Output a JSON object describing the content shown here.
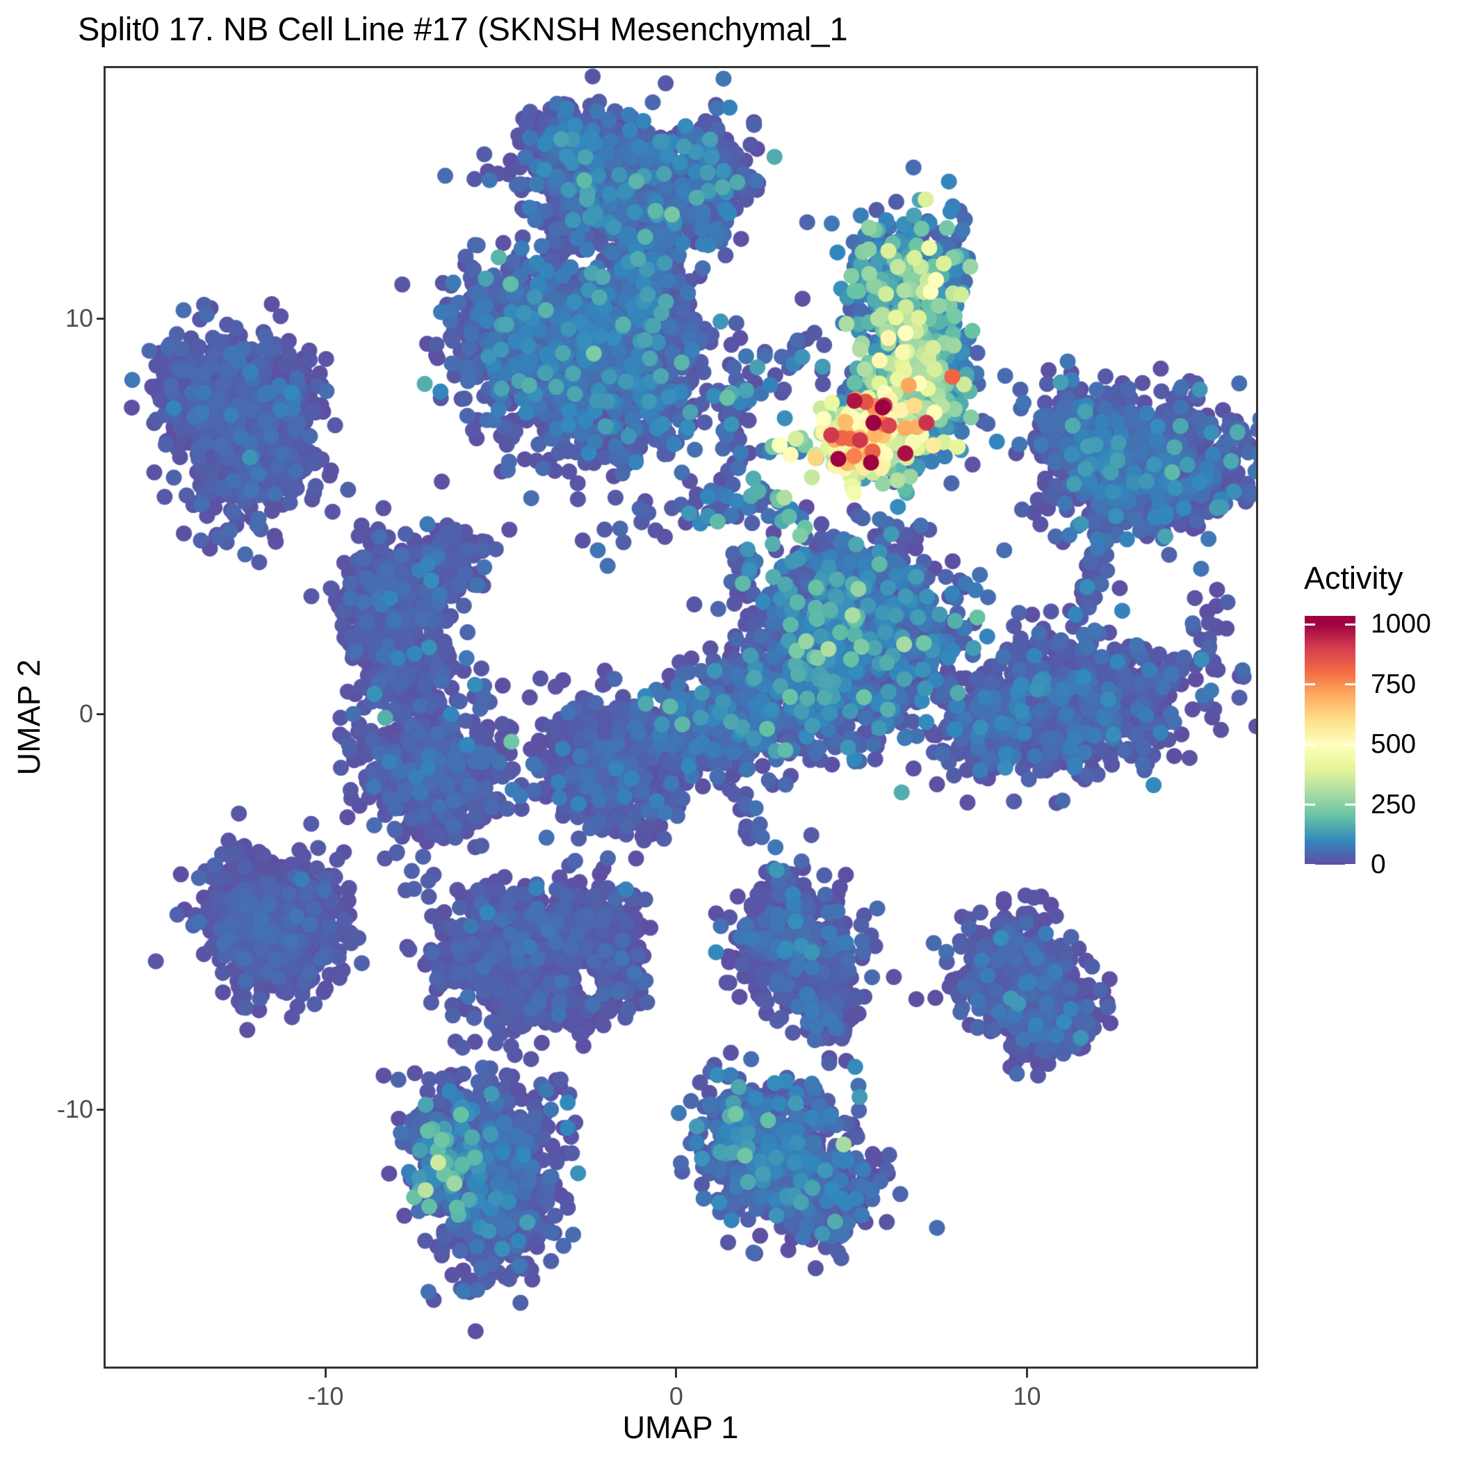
{
  "title": "Split0 17. NB Cell Line #17 (SKNSH Mesenchymal_1",
  "axes": {
    "x_label": "UMAP 1",
    "y_label": "UMAP 2",
    "x_ticks": [
      {
        "value": -10,
        "label": "-10"
      },
      {
        "value": 0,
        "label": "0"
      },
      {
        "value": 10,
        "label": "10"
      }
    ],
    "y_ticks": [
      {
        "value": 10,
        "label": "10"
      },
      {
        "value": 0,
        "label": "0"
      },
      {
        "value": -10,
        "label": "-10"
      }
    ]
  },
  "legend": {
    "title": "Activity",
    "ticks": [
      {
        "value": 1000,
        "label": "1000"
      },
      {
        "value": 750,
        "label": "750"
      },
      {
        "value": 500,
        "label": "500"
      },
      {
        "value": 250,
        "label": "250"
      },
      {
        "value": 0,
        "label": "0"
      }
    ],
    "bar_value_max": 1035
  },
  "chart_data": {
    "type": "scatter",
    "title": "Split0 17. NB Cell Line #17 (SKNSH Mesenchymal_1",
    "xlabel": "UMAP 1",
    "ylabel": "UMAP 2",
    "xlim": [
      -16.27,
      16.53
    ],
    "ylim": [
      -16.5,
      16.33
    ],
    "x_tick_values": [
      -10,
      0,
      10
    ],
    "y_tick_values": [
      -10,
      0,
      10
    ],
    "grid": false,
    "legend_position": "right",
    "value_label": "Activity",
    "value_domain": [
      0,
      1000
    ],
    "point_radius_px": 11.5,
    "seed": 1337,
    "colormap_stops": [
      [
        0.0,
        "#5e4fa2"
      ],
      [
        0.1,
        "#3288bd"
      ],
      [
        0.2,
        "#66c2a5"
      ],
      [
        0.3,
        "#abdda4"
      ],
      [
        0.4,
        "#e6f598"
      ],
      [
        0.5,
        "#ffffbf"
      ],
      [
        0.6,
        "#fee08b"
      ],
      [
        0.7,
        "#fdae61"
      ],
      [
        0.8,
        "#f46d43"
      ],
      [
        0.9,
        "#d53e4f"
      ],
      [
        1.0,
        "#9e0142"
      ]
    ],
    "cluster_fields": [
      "cx",
      "cy",
      "sx",
      "sy",
      "n",
      "v0",
      "v_spread"
    ],
    "clusters": [
      [
        -2.6,
        14.2,
        0.95,
        0.6,
        380,
        0,
        30
      ],
      [
        -1.5,
        13.2,
        1.2,
        0.75,
        600,
        0,
        35
      ],
      [
        0.9,
        13.5,
        0.55,
        0.75,
        240,
        0,
        35
      ],
      [
        -0.7,
        11.7,
        0.45,
        0.65,
        120,
        0,
        30
      ],
      [
        -4.0,
        9.9,
        1.2,
        0.85,
        650,
        0,
        30
      ],
      [
        -2.4,
        8.5,
        1.5,
        1.05,
        900,
        0,
        35
      ],
      [
        -0.9,
        10.1,
        0.7,
        0.8,
        250,
        0,
        30
      ],
      [
        -13.3,
        8.2,
        0.8,
        0.75,
        320,
        0,
        18
      ],
      [
        -12.1,
        6.7,
        0.95,
        0.95,
        480,
        0,
        18
      ],
      [
        -11.3,
        8.1,
        0.6,
        0.55,
        160,
        0,
        18
      ],
      [
        -8.0,
        3.0,
        0.8,
        0.75,
        320,
        0,
        18
      ],
      [
        -6.6,
        4.0,
        0.55,
        0.4,
        100,
        0,
        18
      ],
      [
        -7.9,
        1.4,
        0.65,
        0.75,
        230,
        0,
        18
      ],
      [
        -6.9,
        -1.5,
        1.05,
        0.85,
        560,
        0,
        18
      ],
      [
        -1.9,
        -1.3,
        0.95,
        0.8,
        520,
        0,
        18
      ],
      [
        5.0,
        2.3,
        1.35,
        1.1,
        950,
        0,
        45
      ],
      [
        3.0,
        0.3,
        1.8,
        0.75,
        550,
        0,
        40
      ],
      [
        0.9,
        -0.7,
        0.95,
        0.5,
        170,
        0,
        30
      ],
      [
        6.6,
        11.0,
        0.85,
        0.8,
        380,
        10,
        90
      ],
      [
        6.9,
        8.6,
        0.8,
        0.95,
        480,
        20,
        130
      ],
      [
        5.9,
        7.3,
        0.6,
        0.6,
        200,
        80,
        180
      ],
      [
        5.1,
        6.7,
        0.5,
        0.42,
        170,
        260,
        160
      ],
      [
        13.4,
        6.2,
        1.35,
        0.85,
        850,
        0,
        30
      ],
      [
        11.6,
        7.0,
        0.65,
        0.6,
        220,
        0,
        30
      ],
      [
        11.5,
        0.3,
        1.55,
        0.8,
        700,
        0,
        25
      ],
      [
        8.9,
        -0.5,
        0.85,
        0.5,
        170,
        0,
        25
      ],
      [
        -12.2,
        -4.9,
        0.8,
        0.75,
        300,
        0,
        15
      ],
      [
        -10.8,
        -5.3,
        0.8,
        0.75,
        300,
        0,
        15
      ],
      [
        -11.5,
        -6.2,
        0.6,
        0.55,
        160,
        0,
        15
      ],
      [
        -5.5,
        -6.1,
        0.75,
        0.65,
        240,
        0,
        15
      ],
      [
        -3.9,
        -5.5,
        0.95,
        0.5,
        260,
        0,
        15
      ],
      [
        -2.2,
        -5.2,
        0.65,
        0.45,
        160,
        0,
        15
      ],
      [
        -3.6,
        -7.0,
        0.9,
        0.55,
        220,
        0,
        15
      ],
      [
        -1.7,
        -6.6,
        0.5,
        0.5,
        120,
        0,
        15
      ],
      [
        -5.3,
        -4.8,
        0.25,
        0.22,
        40,
        0,
        15
      ],
      [
        3.5,
        -5.9,
        0.9,
        0.8,
        460,
        0,
        20
      ],
      [
        4.4,
        -7.5,
        0.4,
        0.5,
        90,
        0,
        20
      ],
      [
        9.6,
        -6.5,
        0.8,
        0.7,
        330,
        0,
        20
      ],
      [
        10.5,
        -7.5,
        0.75,
        0.6,
        260,
        0,
        20
      ],
      [
        -5.5,
        -10.7,
        1.0,
        0.8,
        430,
        0,
        30
      ],
      [
        -5.2,
        -12.6,
        0.85,
        0.85,
        380,
        0,
        25
      ],
      [
        -6.6,
        -11.4,
        0.5,
        0.6,
        140,
        10,
        60
      ],
      [
        2.4,
        -10.9,
        0.95,
        0.75,
        400,
        5,
        45
      ],
      [
        4.0,
        -12.0,
        0.95,
        0.7,
        340,
        0,
        30
      ]
    ],
    "chain_fields": [
      "x1",
      "y1",
      "x2",
      "y2",
      "n",
      "jitter",
      "v0",
      "v_spread"
    ],
    "chains": [
      [
        3.9,
        9.05,
        2.0,
        8.4,
        32,
        0.3,
        0,
        60
      ],
      [
        1.85,
        8.2,
        1.55,
        6.6,
        30,
        0.28,
        0,
        60
      ],
      [
        1.8,
        6.1,
        3.5,
        5.0,
        24,
        0.3,
        0,
        90
      ],
      [
        2.6,
        6.7,
        3.9,
        6.9,
        12,
        0.25,
        60,
        160
      ],
      [
        1.6,
        5.7,
        2.2,
        2.5,
        30,
        0.3,
        0,
        40
      ],
      [
        0.2,
        4.9,
        1.4,
        5.8,
        16,
        0.3,
        0,
        40
      ],
      [
        0.3,
        9.1,
        0.3,
        7.2,
        14,
        0.22,
        0,
        40
      ],
      [
        12.3,
        4.9,
        11.6,
        2.7,
        26,
        0.22,
        0,
        30
      ],
      [
        14.9,
        1.3,
        15.5,
        3.1,
        20,
        0.25,
        0,
        25
      ],
      [
        1.0,
        -1.4,
        3.2,
        -4.3,
        30,
        0.28,
        0,
        25
      ],
      [
        -2.3,
        4.6,
        0.4,
        5.5,
        18,
        0.45,
        0,
        30
      ]
    ],
    "single_fields": [
      "x",
      "y",
      "value"
    ],
    "singles": [
      [
        4.62,
        6.45,
        1000
      ],
      [
        5.07,
        6.52,
        770
      ],
      [
        3.6,
        10.5,
        5
      ],
      [
        -8.3,
        -0.1,
        170
      ],
      [
        -4.7,
        -0.7,
        215
      ],
      [
        2.75,
        6.75,
        230
      ],
      [
        2.2,
        5.95,
        160
      ],
      [
        -4.3,
        15.0,
        0
      ],
      [
        -3.0,
        15.3,
        0
      ]
    ],
    "hole_fields": [
      "x",
      "y",
      "r"
    ],
    "holes": [
      [
        -2.5,
        -6.85,
        0.4
      ],
      [
        -4.35,
        -1.4,
        0.3
      ]
    ]
  }
}
